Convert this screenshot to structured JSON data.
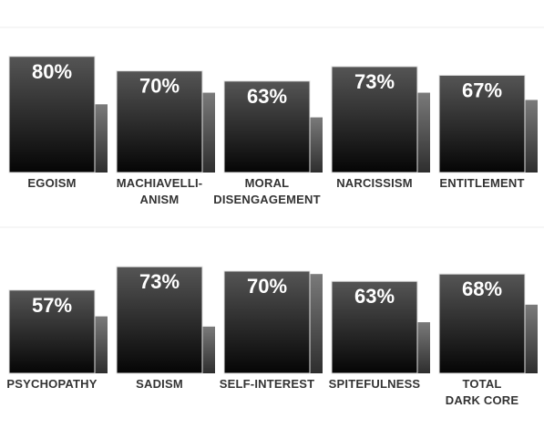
{
  "chart_data": [
    {
      "type": "bar",
      "ylim": [
        0,
        100
      ],
      "categories": [
        "EGOISM",
        "MACHIAVELLI-\nANISM",
        "MORAL\nDISENGAGEMENT",
        "NARCISSISM",
        "ENTITLEMENT"
      ],
      "series": [
        {
          "color": "#2a2a2a",
          "values": [
            80,
            70,
            63,
            73,
            67
          ],
          "value_labels": [
            "80%",
            "70%",
            "63%",
            "73%",
            "67%"
          ]
        },
        {
          "color": "#5a5a5a",
          "values": [
            47,
            55,
            38,
            55,
            50
          ]
        }
      ]
    },
    {
      "type": "bar",
      "ylim": [
        0,
        100
      ],
      "categories": [
        "PSYCHOPATHY",
        "SADISM",
        "SELF-INTEREST",
        "SPITEFULNESS",
        "TOTAL\nDARK CORE"
      ],
      "series": [
        {
          "color": "#2a2a2a",
          "values": [
            57,
            73,
            70,
            63,
            68
          ],
          "value_labels": [
            "57%",
            "73%",
            "70%",
            "63%",
            "68%"
          ]
        },
        {
          "color": "#5a5a5a",
          "values": [
            39,
            32,
            68,
            35,
            47
          ]
        }
      ]
    }
  ]
}
